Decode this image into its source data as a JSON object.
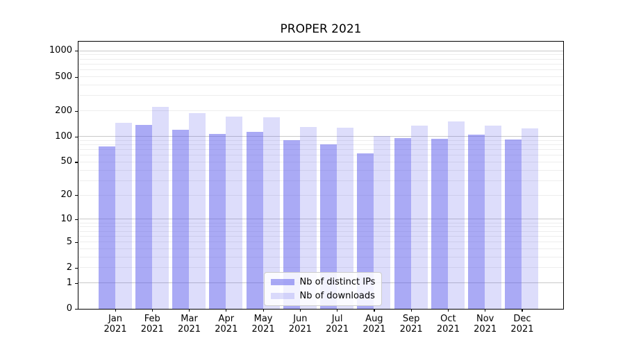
{
  "chart_data": {
    "type": "bar",
    "title": "PROPER 2021",
    "x_tick_months": [
      "Jan",
      "Feb",
      "Mar",
      "Apr",
      "May",
      "Jun",
      "Jul",
      "Aug",
      "Sep",
      "Oct",
      "Nov",
      "Dec"
    ],
    "x_tick_year": "2021",
    "series": [
      {
        "name": "Nb of distinct IPs",
        "key": "distinct-ips",
        "color": "rgba(85,85,235,0.5)",
        "values": [
          75,
          136,
          118,
          106,
          112,
          90,
          80,
          63,
          95,
          93,
          105,
          91
        ]
      },
      {
        "name": "Nb of downloads",
        "key": "downloads",
        "color": "rgba(85,85,235,0.2)",
        "values": [
          144,
          222,
          185,
          168,
          167,
          129,
          126,
          100,
          134,
          149,
          134,
          124
        ]
      }
    ],
    "y_axis": {
      "scale": "log1p",
      "ticks": [
        0,
        1,
        2,
        5,
        10,
        20,
        50,
        100,
        200,
        500,
        1000
      ],
      "major_gridlines": [
        1,
        10,
        100,
        1000
      ],
      "max": 1280
    },
    "legend_position": "lower center",
    "grid": true,
    "colors": {
      "bar_base": "#5555eb",
      "major_grid": "#c9c9c9",
      "minor_grid": "#ededed",
      "axis": "#000000"
    }
  }
}
